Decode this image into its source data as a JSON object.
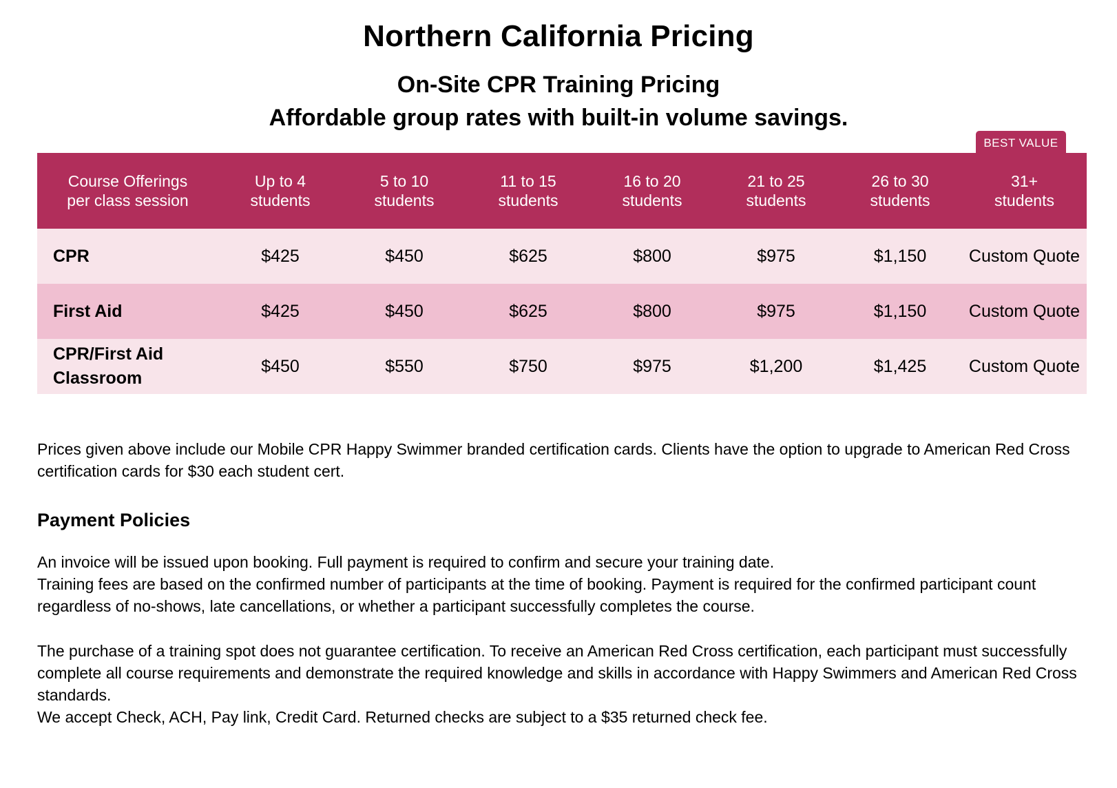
{
  "page": {
    "title": "Northern California Pricing",
    "subtitle": "On-Site CPR Training Pricing",
    "tagline": "Affordable group rates with built-in volume savings."
  },
  "badge": {
    "best_value": "BEST VALUE"
  },
  "table": {
    "headers": [
      "Course Offerings\nper class session",
      "Up to 4\nstudents",
      "5 to 10\nstudents",
      "11 to 15\nstudents",
      "16 to 20\nstudents",
      "21 to 25\nstudents",
      "26 to 30\nstudents",
      "31+\nstudents"
    ],
    "rows": [
      {
        "course": "CPR",
        "prices": [
          "$425",
          "$450",
          "$625",
          "$800",
          "$975",
          "$1,150",
          "Custom Quote"
        ],
        "row_color": "#f8e4ea"
      },
      {
        "course": "First Aid",
        "prices": [
          "$425",
          "$450",
          "$625",
          "$800",
          "$975",
          "$1,150",
          "Custom Quote"
        ],
        "row_color": "#f0bfd1"
      },
      {
        "course": "CPR/First Aid\nClassroom",
        "prices": [
          "$450",
          "$550",
          "$750",
          "$975",
          "$1,200",
          "$1,425",
          "Custom Quote"
        ],
        "row_color": "#f8e4ea"
      }
    ],
    "header_color": "#b12e5b"
  },
  "note": "Prices given above include our Mobile CPR Happy Swimmer branded certification cards. Clients have the option to upgrade to American Red Cross certification cards for $30 each student cert.",
  "policies": {
    "heading": "Payment Policies",
    "paragraph_1": "An invoice will be issued upon booking. Full payment is required to confirm and secure your training date.\nTraining fees are based on the confirmed number of participants at the time of booking. Payment is required for the confirmed participant count regardless of no-shows, late cancellations, or whether a participant successfully completes the course.",
    "paragraph_2": "The purchase of a training spot does not guarantee certification. To receive an American Red Cross certification, each participant must successfully complete all course requirements and demonstrate the required knowledge and skills in accordance with Happy Swimmers and American Red Cross standards.\nWe accept Check, ACH, Pay link, Credit Card. Returned checks are subject to a $35 returned check fee."
  }
}
